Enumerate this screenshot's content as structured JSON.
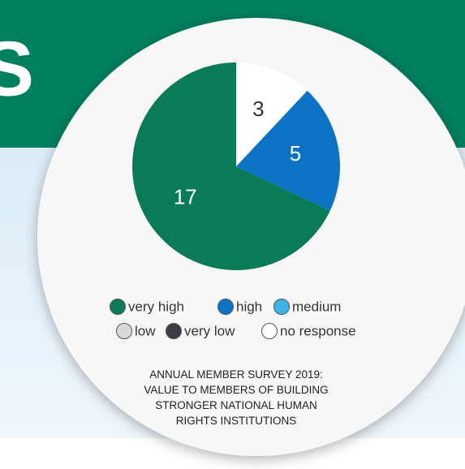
{
  "background_text": "S",
  "chart_data": {
    "type": "pie",
    "title": "ANNUAL MEMBER SURVEY 2019: VALUE TO MEMBERS OF BUILDING STRONGER NATIONAL HUMAN RIGHTS INSTITUTIONS",
    "categories": [
      "very high",
      "high",
      "medium",
      "low",
      "very low",
      "no response"
    ],
    "values": [
      17,
      5,
      0,
      0,
      0,
      3
    ],
    "colors": [
      "#0b7a59",
      "#0b72c4",
      "#3fb2e8",
      "#d9d9d9",
      "#3a3d46",
      "#ffffff"
    ]
  }
}
